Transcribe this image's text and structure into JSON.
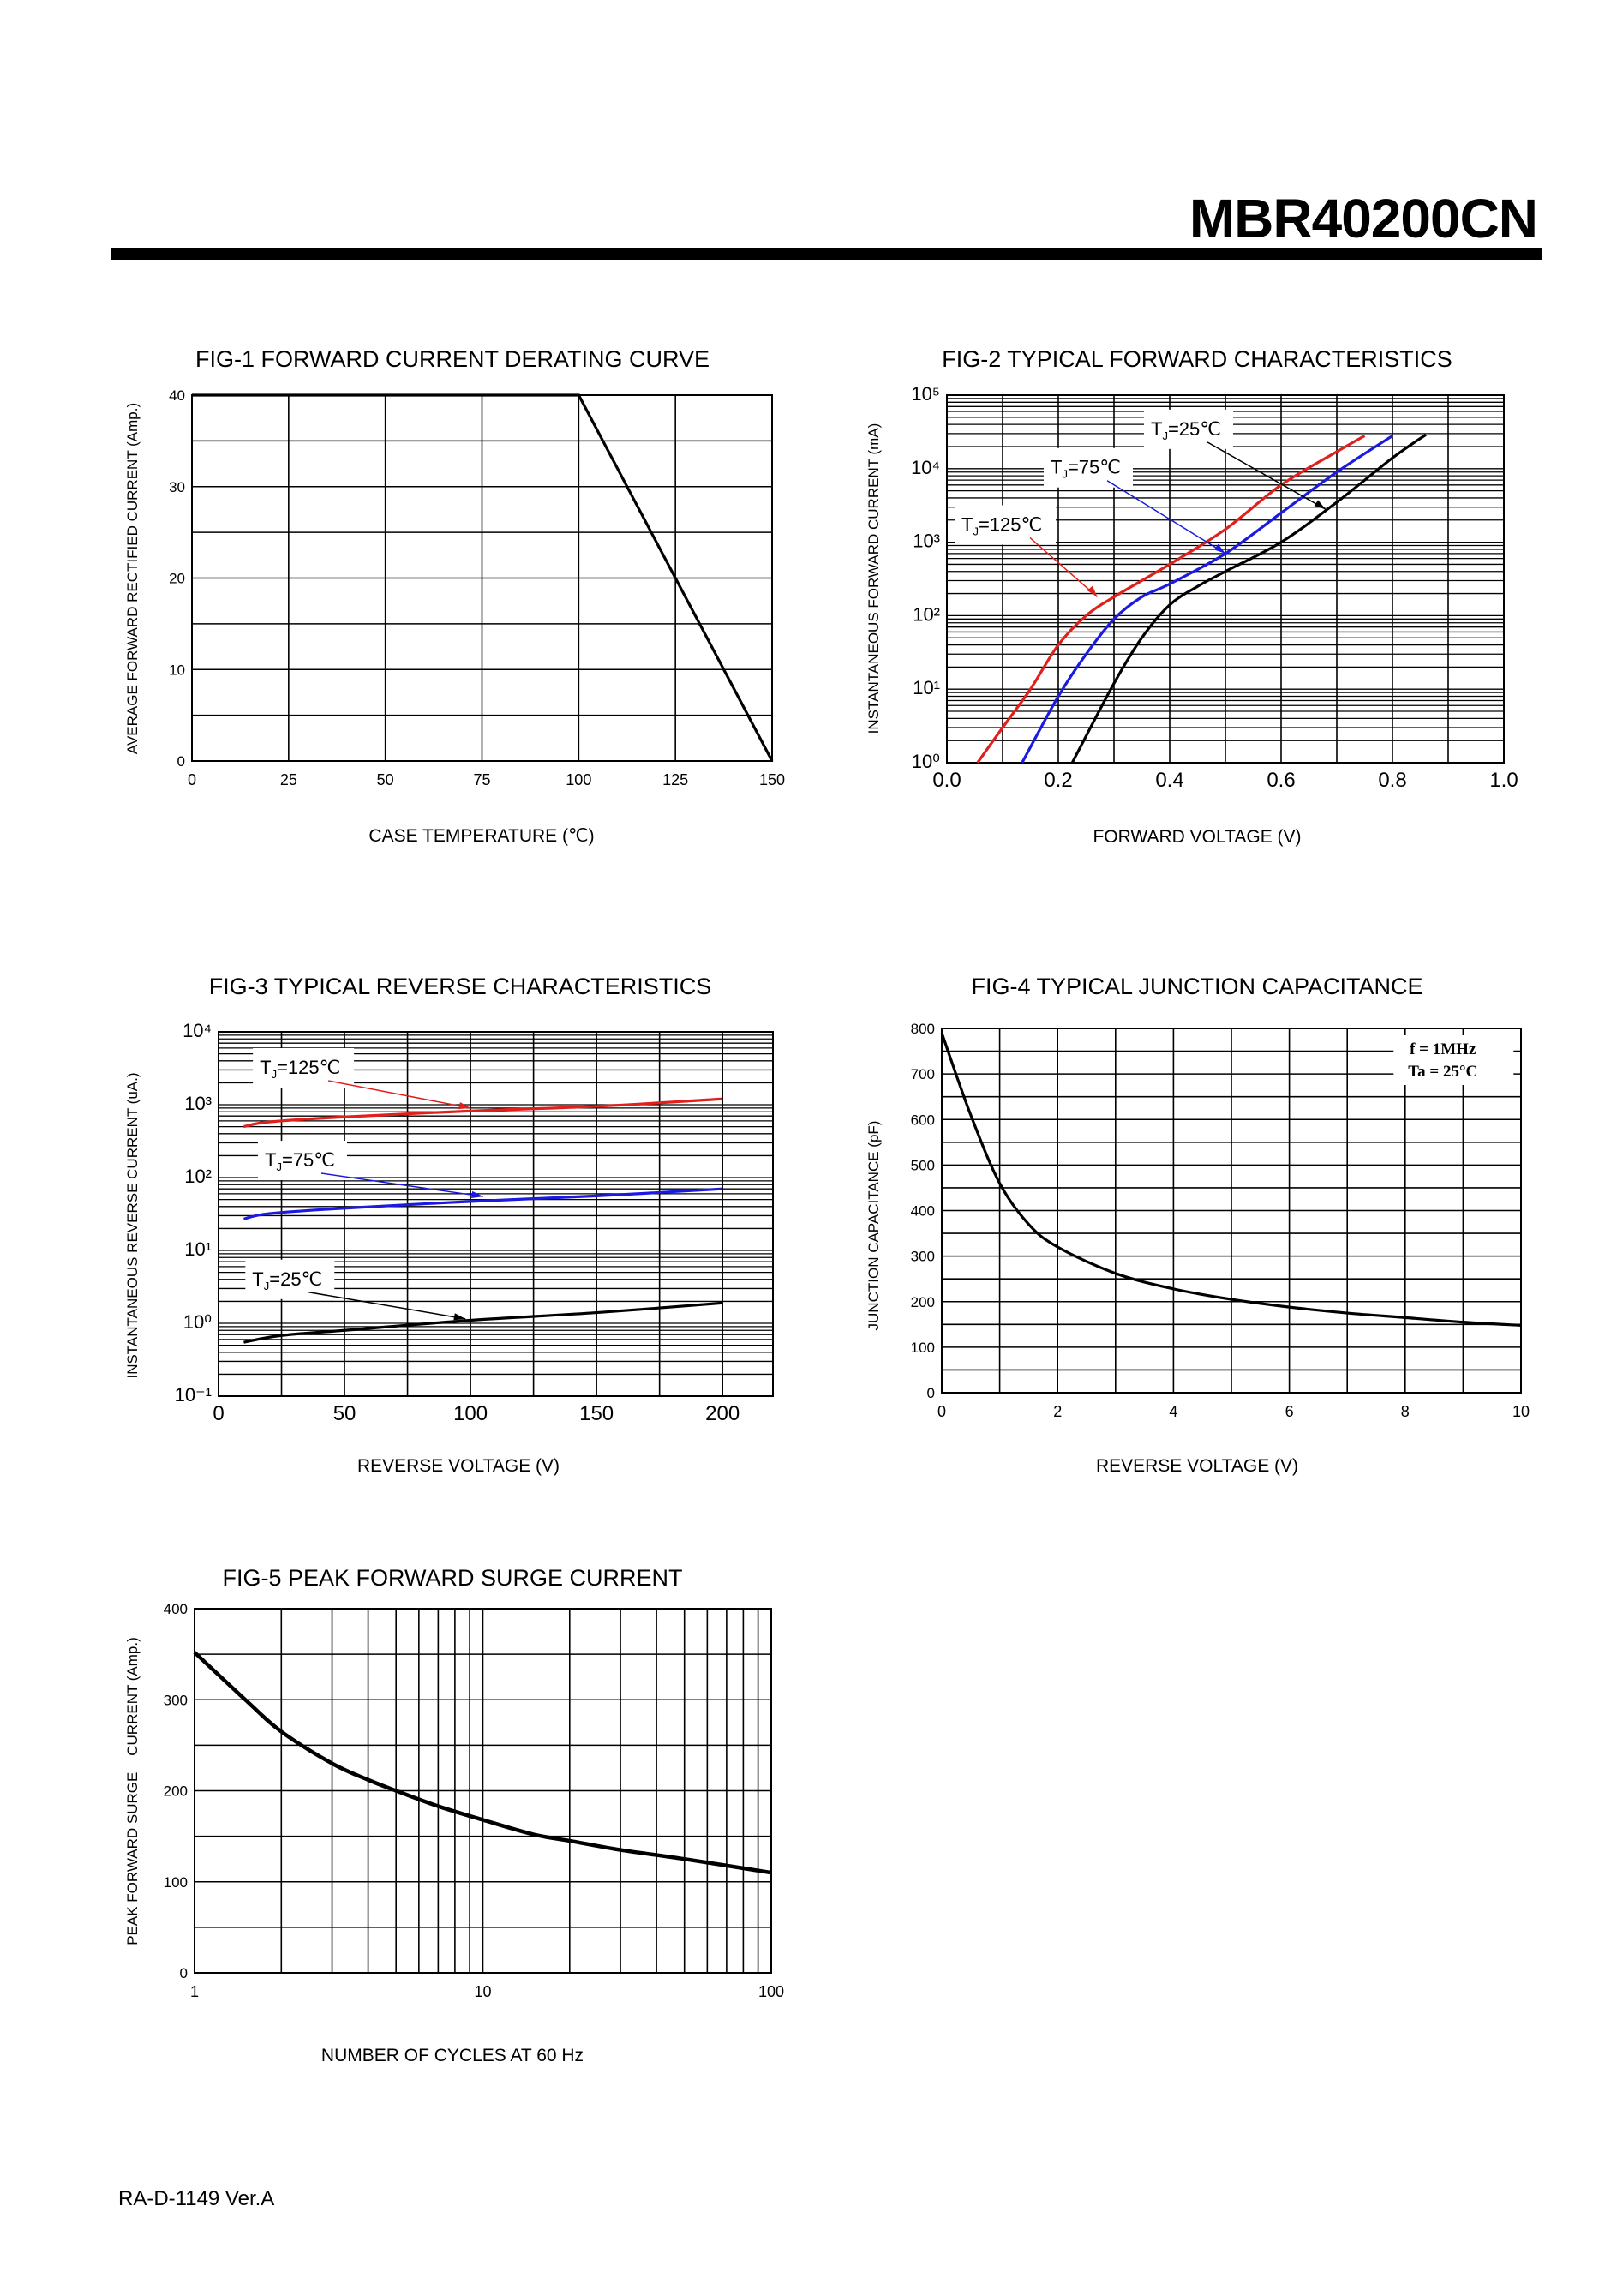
{
  "header": {
    "part_number": "MBR40200CN"
  },
  "footer": {
    "doc_code": "RA-D-1149 Ver.A"
  },
  "colors": {
    "t125": "#e0201c",
    "t75": "#1a1ae0",
    "t25": "#000000",
    "grid": "#000000"
  },
  "chart_data": [
    {
      "id": "fig1",
      "type": "line",
      "title": "FIG-1 FORWARD CURRENT DERATING CURVE",
      "xlabel": "CASE TEMPERATURE (℃)",
      "ylabel": "AVERAGE FORWARD RECTIFIED CURRENT (Amp.)",
      "xscale": "linear",
      "yscale": "linear",
      "xlim": [
        0,
        150
      ],
      "ylim": [
        0,
        40
      ],
      "grid": true,
      "xticks": [
        0,
        25,
        50,
        75,
        100,
        125,
        150
      ],
      "xtick_labels": [
        "0",
        "25",
        "50",
        "75",
        "100",
        "125",
        "150"
      ],
      "yticks": [
        0,
        10,
        20,
        30,
        40
      ],
      "ytick_labels": [
        "0",
        "10",
        "20",
        "30",
        "40"
      ],
      "series": [
        {
          "color": "#000000",
          "x": [
            0,
            100,
            150
          ],
          "y": [
            40,
            40,
            0
          ]
        }
      ]
    },
    {
      "id": "fig2",
      "type": "line",
      "title": "FIG-2 TYPICAL FORWARD CHARACTERISTICS",
      "xlabel": "FORWARD VOLTAGE (V)",
      "ylabel": "INSTANTANEOUS FORWARD CURRENT (mA)",
      "xscale": "linear",
      "yscale": "log",
      "xlim": [
        0,
        1.0
      ],
      "ylim": [
        1,
        100000
      ],
      "grid": true,
      "xticks": [
        0,
        0.2,
        0.4,
        0.6,
        0.8,
        1.0
      ],
      "xtick_labels": [
        "0.0",
        "0.2",
        "0.4",
        "0.6",
        "0.8",
        "1.0"
      ],
      "yticks": [
        1,
        10,
        100,
        1000,
        10000,
        100000
      ],
      "ytick_labels": [
        "10⁰",
        "10¹",
        "10²",
        "10³",
        "10⁴",
        "10⁵"
      ],
      "series": [
        {
          "name": "TJ=125℃",
          "label": {
            "T": "T",
            "sub": "J",
            "rest": "=125℃"
          },
          "color": "#e0201c",
          "x": [
            0.055,
            0.1,
            0.15,
            0.2,
            0.25,
            0.3,
            0.4,
            0.5,
            0.6,
            0.7,
            0.75
          ],
          "y": [
            1,
            3,
            10,
            40,
            100,
            180,
            500,
            1500,
            6000,
            17000,
            28000
          ]
        },
        {
          "name": "TJ=75℃",
          "label": {
            "T": "T",
            "sub": "J",
            "rest": "=75℃"
          },
          "color": "#1a1ae0",
          "x": [
            0.135,
            0.2,
            0.25,
            0.3,
            0.35,
            0.4,
            0.5,
            0.6,
            0.7,
            0.8
          ],
          "y": [
            1,
            8,
            30,
            90,
            180,
            270,
            700,
            2500,
            9000,
            28000
          ]
        },
        {
          "name": "TJ=25℃",
          "label": {
            "T": "T",
            "sub": "J",
            "rest": "=25℃"
          },
          "color": "#000000",
          "x": [
            0.225,
            0.3,
            0.35,
            0.4,
            0.45,
            0.5,
            0.6,
            0.7,
            0.8,
            0.86
          ],
          "y": [
            1,
            12,
            50,
            140,
            250,
            400,
            1000,
            3500,
            14000,
            29000
          ]
        }
      ]
    },
    {
      "id": "fig3",
      "type": "line",
      "title": "FIG-3 TYPICAL REVERSE CHARACTERISTICS",
      "xlabel": "REVERSE VOLTAGE (V)",
      "ylabel": "INSTANTANEOUS REVERSE CURRENT (uA.)",
      "xscale": "linear",
      "yscale": "log",
      "xlim": [
        0,
        220
      ],
      "ylim": [
        0.1,
        10000
      ],
      "grid": true,
      "xticks": [
        0,
        50,
        100,
        150,
        200
      ],
      "xtick_labels": [
        "0",
        "50",
        "100",
        "150",
        "200"
      ],
      "yticks": [
        0.1,
        1,
        10,
        100,
        1000,
        10000
      ],
      "ytick_labels": [
        "10⁻¹",
        "10⁰",
        "10¹",
        "10²",
        "10³",
        "10⁴"
      ],
      "series": [
        {
          "name": "TJ=125℃",
          "label": {
            "T": "T",
            "sub": "J",
            "rest": "=125℃"
          },
          "color": "#e0201c",
          "x": [
            10,
            20,
            50,
            100,
            150,
            200
          ],
          "y": [
            500,
            580,
            680,
            820,
            950,
            1200
          ]
        },
        {
          "name": "TJ=75℃",
          "label": {
            "T": "T",
            "sub": "J",
            "rest": "=75℃"
          },
          "color": "#1a1ae0",
          "x": [
            10,
            20,
            50,
            100,
            150,
            200
          ],
          "y": [
            27,
            32,
            38,
            47,
            56,
            70
          ]
        },
        {
          "name": "TJ=25℃",
          "label": {
            "T": "T",
            "sub": "J",
            "rest": "=25℃"
          },
          "color": "#000000",
          "x": [
            10,
            25,
            50,
            100,
            150,
            200
          ],
          "y": [
            0.55,
            0.68,
            0.8,
            1.1,
            1.4,
            1.9
          ]
        }
      ]
    },
    {
      "id": "fig4",
      "type": "line",
      "title": "FIG-4 TYPICAL JUNCTION CAPACITANCE",
      "xlabel": "REVERSE VOLTAGE (V)",
      "ylabel": "JUNCTION CAPACITANCE (pF)",
      "xscale": "linear",
      "yscale": "linear",
      "xlim": [
        0,
        10
      ],
      "ylim": [
        0,
        800
      ],
      "grid": true,
      "xticks": [
        0,
        2,
        4,
        6,
        8,
        10
      ],
      "xtick_labels": [
        "0",
        "2",
        "4",
        "6",
        "8",
        "10"
      ],
      "yticks": [
        0,
        100,
        200,
        300,
        400,
        500,
        600,
        700,
        800
      ],
      "ytick_labels": [
        "0",
        "100",
        "200",
        "300",
        "400",
        "500",
        "600",
        "700",
        "800"
      ],
      "annotations": [
        "f = 1MHz",
        "Ta = 25°C"
      ],
      "series": [
        {
          "color": "#000000",
          "x": [
            0,
            0.5,
            1,
            1.5,
            2,
            3,
            4,
            5,
            6,
            7,
            8,
            9,
            10
          ],
          "y": [
            790,
            610,
            460,
            370,
            320,
            262,
            228,
            205,
            188,
            175,
            165,
            155,
            148
          ]
        }
      ]
    },
    {
      "id": "fig5",
      "type": "line",
      "title": "FIG-5 PEAK FORWARD SURGE CURRENT",
      "xlabel": "NUMBER OF CYCLES AT 60 Hz",
      "ylabel": "PEAK FORWARD SURGE    CURRENT (Amp.)",
      "xscale": "log",
      "yscale": "linear",
      "xlim": [
        1,
        100
      ],
      "ylim": [
        0,
        400
      ],
      "grid": true,
      "xticks": [
        1,
        10,
        100
      ],
      "xtick_labels": [
        "1",
        "10",
        "100"
      ],
      "yticks": [
        0,
        100,
        200,
        300,
        400
      ],
      "ytick_labels": [
        "0",
        "100",
        "200",
        "300",
        "400"
      ],
      "series": [
        {
          "color": "#000000",
          "x": [
            1,
            1.5,
            2,
            3,
            4,
            5,
            7,
            10,
            15,
            20,
            30,
            50,
            100
          ],
          "y": [
            352,
            300,
            265,
            230,
            212,
            200,
            183,
            168,
            152,
            145,
            135,
            125,
            110
          ]
        }
      ]
    }
  ]
}
